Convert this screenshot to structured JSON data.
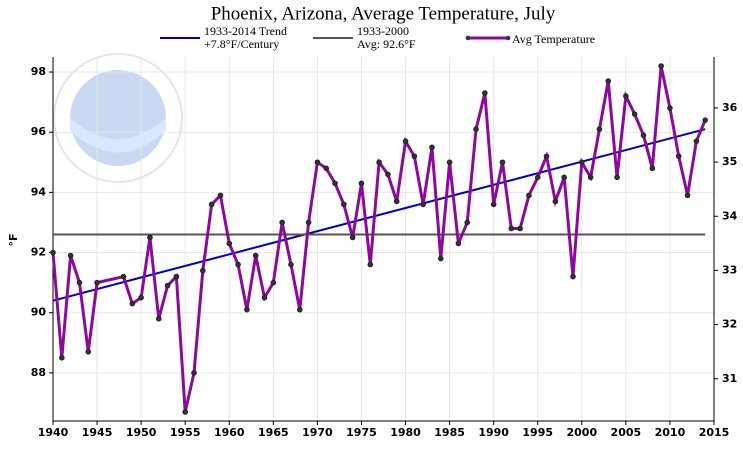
{
  "chart_data": {
    "type": "line",
    "title": "Phoenix, Arizona, Average Temperature, July",
    "ylabel": "°F",
    "xlim": [
      1940,
      2015
    ],
    "xticks": [
      1940,
      1945,
      1950,
      1955,
      1960,
      1965,
      1970,
      1975,
      1980,
      1985,
      1990,
      1995,
      2000,
      2005,
      2010,
      2015
    ],
    "ylim": [
      86.4,
      98.5
    ],
    "yticks": [
      88,
      90,
      92,
      94,
      96,
      98
    ],
    "y2lim": [
      30.22,
      36.94
    ],
    "y2ticks": [
      31,
      32,
      33,
      34,
      35,
      36
    ],
    "grid": true,
    "series": [
      {
        "name": "1933-2014 Trend",
        "note": "+7.8°F/Century",
        "color": "#0000cc",
        "x": [
          1940,
          2014
        ],
        "values": [
          90.4,
          96.1
        ]
      },
      {
        "name": "1933-2000",
        "note": "Avg: 92.6°F",
        "color": "#555555",
        "x": [
          1940,
          2014
        ],
        "values": [
          92.6,
          92.6
        ]
      },
      {
        "name": "Avg Temperature",
        "color": "#8b0a9c",
        "markers": true,
        "x": [
          1940,
          1941,
          1942,
          1943,
          1944,
          1945,
          1948,
          1949,
          1950,
          1951,
          1952,
          1953,
          1954,
          1955,
          1956,
          1957,
          1958,
          1959,
          1960,
          1961,
          1962,
          1963,
          1964,
          1965,
          1966,
          1967,
          1968,
          1969,
          1970,
          1971,
          1972,
          1973,
          1974,
          1975,
          1976,
          1977,
          1978,
          1979,
          1980,
          1981,
          1982,
          1983,
          1984,
          1985,
          1986,
          1987,
          1988,
          1989,
          1990,
          1991,
          1992,
          1993,
          1994,
          1995,
          1996,
          1997,
          1998,
          1999,
          2000,
          2001,
          2002,
          2003,
          2004,
          2005,
          2006,
          2007,
          2008,
          2009,
          2010,
          2011,
          2012,
          2013,
          2014
        ],
        "values": [
          92.0,
          88.5,
          91.9,
          91.0,
          88.7,
          91.0,
          91.2,
          90.3,
          90.5,
          92.5,
          89.8,
          90.9,
          91.2,
          86.7,
          88.0,
          91.4,
          93.6,
          93.9,
          92.3,
          91.6,
          90.1,
          91.9,
          90.5,
          91.0,
          93.0,
          91.6,
          90.1,
          93.0,
          95.0,
          94.8,
          94.3,
          93.6,
          92.5,
          94.3,
          91.6,
          95.0,
          94.6,
          93.7,
          95.7,
          95.2,
          93.6,
          95.5,
          91.8,
          95.0,
          92.3,
          93.0,
          96.1,
          97.3,
          93.6,
          95.0,
          92.8,
          92.8,
          93.9,
          94.5,
          95.2,
          93.7,
          94.5,
          91.2,
          95.0,
          94.5,
          96.1,
          97.7,
          94.5,
          97.2,
          96.6,
          95.9,
          94.8,
          98.2,
          96.8,
          95.2,
          93.9,
          95.7,
          96.4
        ]
      }
    ]
  }
}
